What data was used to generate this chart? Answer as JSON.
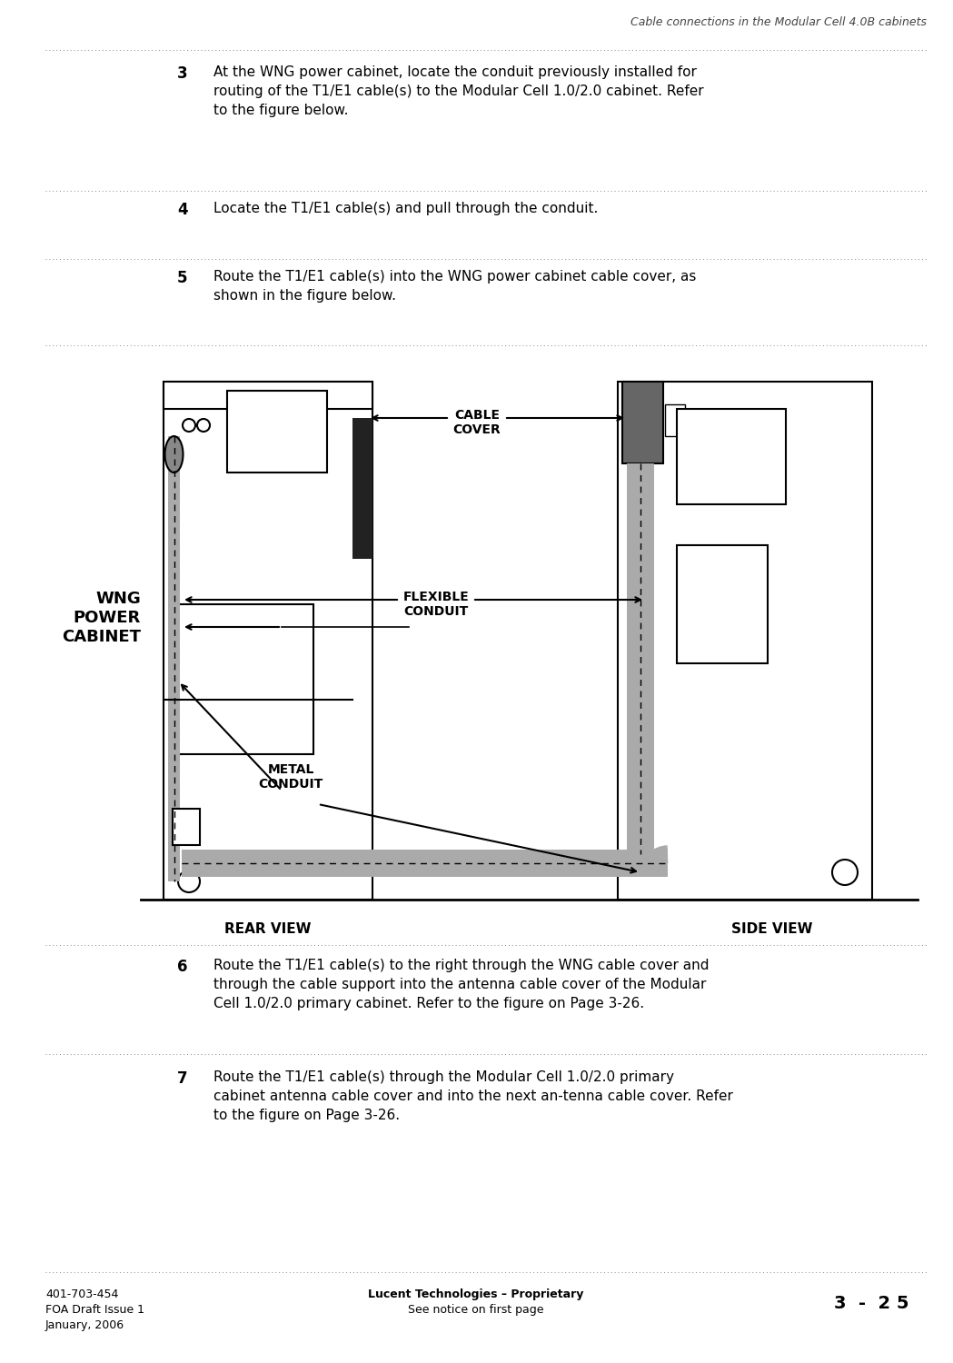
{
  "header_title": "Cable connections in the Modular Cell 4.0B cabinets",
  "footer_left_line1": "401-703-454",
  "footer_left_line2": "FOA Draft Issue 1",
  "footer_left_line3": "January, 2006",
  "footer_center_line1": "Lucent Technologies – Proprietary",
  "footer_center_line2": "See notice on first page",
  "footer_right": "3  -  2 5",
  "step3_num": "3",
  "step3_text": "At the WNG power cabinet, locate the conduit previously installed for\nrouting of the T1/E1 cable(s) to the Modular Cell 1.0/2.0 cabinet. Refer\nto the figure below.",
  "step4_num": "4",
  "step4_text": "Locate the T1/E1 cable(s) and pull through the conduit.",
  "step5_num": "5",
  "step5_text": "Route the T1/E1 cable(s) into the WNG power cabinet cable cover, as\nshown in the figure below.",
  "step6_num": "6",
  "step6_text": "Route the T1/E1 cable(s) to the right through the WNG cable cover and\nthrough the cable support into the antenna cable cover of the Modular\nCell 1.0/2.0 primary cabinet. Refer to the figure on Page 3-26.",
  "step7_num": "7",
  "step7_text": "Route the T1/E1 cable(s) through the Modular Cell 1.0/2.0 primary\ncabinet antenna cable cover and into the next an­tenna cable cover. Refer\nto the figure on Page 3-26.",
  "label_wng": "WNG\nPOWER\nCABINET",
  "label_cable_cover": "CABLE\nCOVER",
  "label_flexible": "FLEXIBLE\nCONDUIT",
  "label_metal": "METAL\nCONDUIT",
  "label_rear": "REAR VIEW",
  "label_side": "SIDE VIEW",
  "bg_color": "#ffffff",
  "text_color": "#000000",
  "diagram_color": "#000000",
  "gray_color": "#888888",
  "light_gray": "#cccccc",
  "dark_gray": "#555555"
}
